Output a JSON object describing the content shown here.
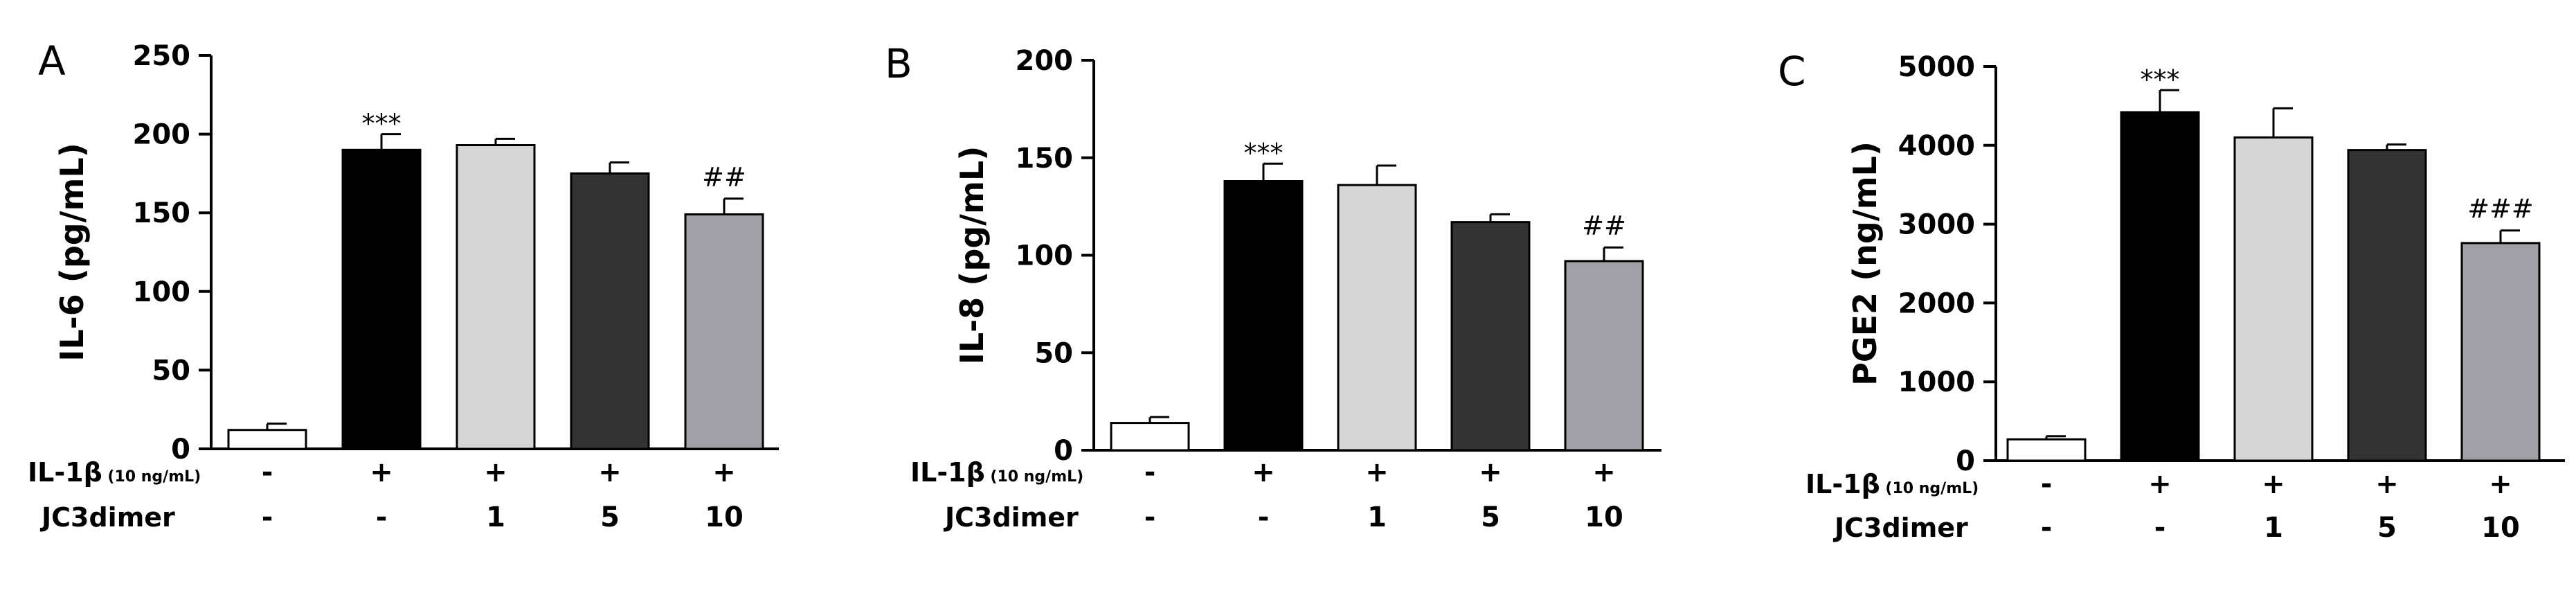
{
  "chart_data": [
    {
      "panel": "A",
      "type": "bar",
      "ylabel": "IL-6 (pg/mL)",
      "ylim": [
        0,
        250
      ],
      "yticks": [
        "0",
        "50",
        "100",
        "150",
        "200",
        "250"
      ],
      "values": [
        12,
        190,
        193,
        175,
        149
      ],
      "errors": [
        4,
        10,
        4,
        7,
        10
      ],
      "colors": [
        "#ffffff",
        "#000000",
        "#d6d6d6",
        "#333333",
        "#a0a0a6"
      ],
      "significance": [
        "",
        "***",
        "",
        "",
        "##"
      ],
      "rows": [
        {
          "label_main": "IL-1β",
          "label_sub": " (10 ng/mL)",
          "cells": [
            "-",
            "+",
            "+",
            "+",
            "+"
          ]
        },
        {
          "label_main": "JC3dimer",
          "label_sub": "",
          "cells": [
            "-",
            "-",
            "1",
            "5",
            "10"
          ]
        }
      ]
    },
    {
      "panel": "B",
      "type": "bar",
      "ylabel": "IL-8 (pg/mL)",
      "ylim": [
        0,
        200
      ],
      "yticks": [
        "0",
        "50",
        "100",
        "150",
        "200"
      ],
      "values": [
        14,
        138,
        136,
        117,
        97
      ],
      "errors": [
        3,
        9,
        10,
        4,
        7
      ],
      "colors": [
        "#ffffff",
        "#000000",
        "#d6d6d6",
        "#333333",
        "#a0a0a6"
      ],
      "significance": [
        "",
        "***",
        "",
        "",
        "##"
      ],
      "rows": [
        {
          "label_main": "IL-1β",
          "label_sub": " (10 ng/mL)",
          "cells": [
            "-",
            "+",
            "+",
            "+",
            "+"
          ]
        },
        {
          "label_main": "JC3dimer",
          "label_sub": "",
          "cells": [
            "-",
            "-",
            "1",
            "5",
            "10"
          ]
        }
      ]
    },
    {
      "panel": "C",
      "type": "bar",
      "ylabel": "PGE2 (ng/mL)",
      "ylim": [
        0,
        5000
      ],
      "yticks": [
        "0",
        "1000",
        "2000",
        "3000",
        "4000",
        "5000"
      ],
      "values": [
        270,
        4420,
        4100,
        3940,
        2760
      ],
      "errors": [
        40,
        280,
        370,
        70,
        160
      ],
      "colors": [
        "#ffffff",
        "#000000",
        "#d6d6d6",
        "#333333",
        "#a0a0a6"
      ],
      "significance": [
        "",
        "***",
        "",
        "",
        "###"
      ],
      "rows": [
        {
          "label_main": "IL-1β",
          "label_sub": " (10 ng/mL)",
          "cells": [
            "-",
            "+",
            "+",
            "+",
            "+"
          ]
        },
        {
          "label_main": "JC3dimer",
          "label_sub": "",
          "cells": [
            "-",
            "-",
            "1",
            "5",
            "10"
          ]
        }
      ]
    }
  ]
}
